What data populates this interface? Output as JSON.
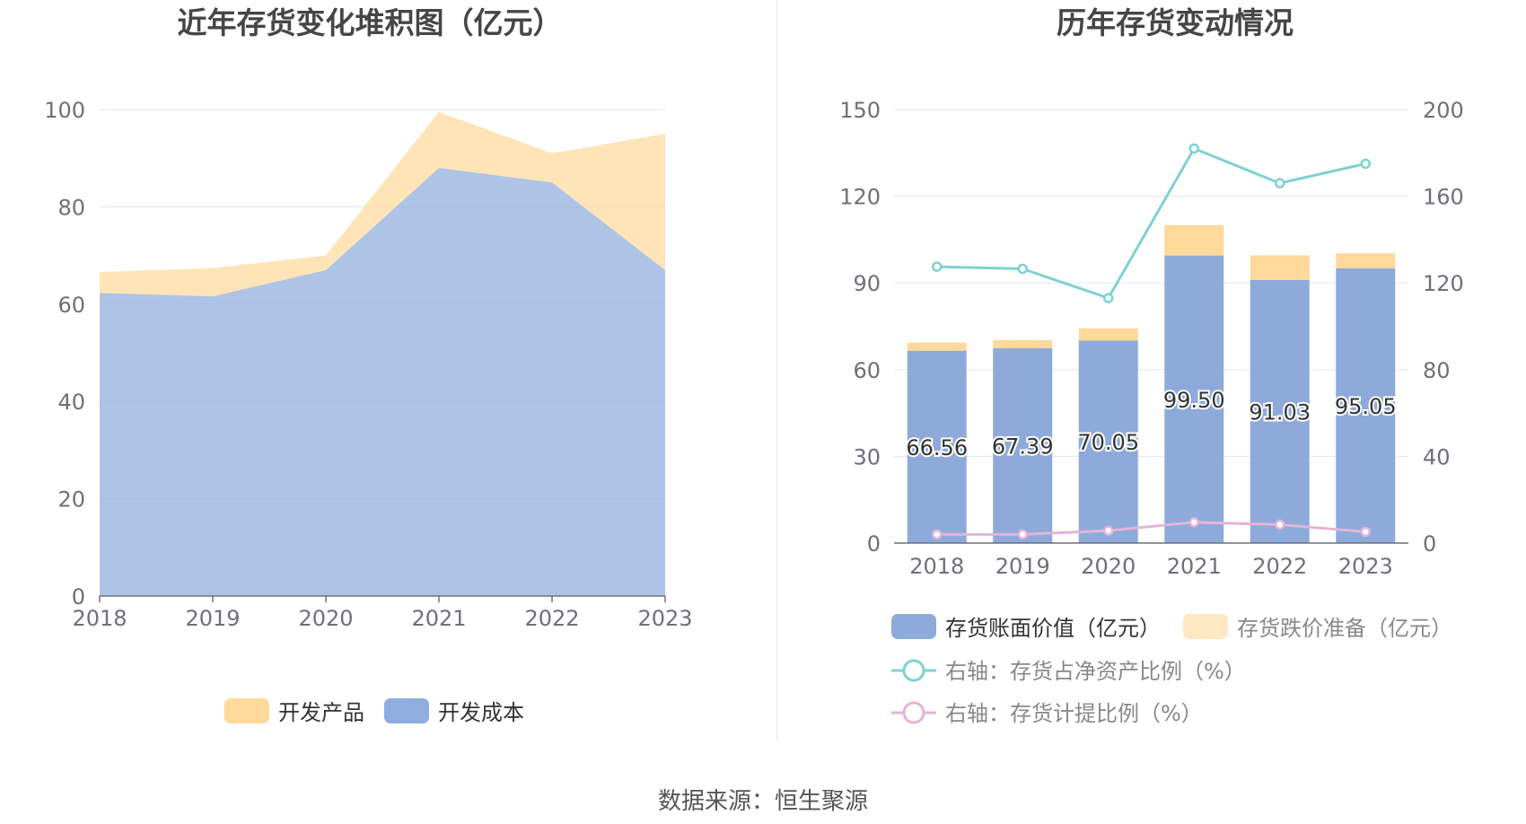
{
  "source": "数据来源：恒生聚源",
  "chart_data": [
    {
      "type": "area",
      "title": "近年存货变化堆积图（亿元）",
      "x": [
        "2018",
        "2019",
        "2020",
        "2021",
        "2022",
        "2023"
      ],
      "ylim": [
        0,
        100
      ],
      "yticks": [
        "0",
        "20",
        "40",
        "60",
        "80",
        "100"
      ],
      "stacked": true,
      "grid": true,
      "legend_position": "bottom",
      "series": [
        {
          "name": "开发成本",
          "values": [
            62.3,
            61.6,
            67.0,
            88.0,
            85.0,
            67.0
          ],
          "color": "#8fadde"
        },
        {
          "name": "开发产品",
          "values": [
            4.3,
            5.8,
            3.0,
            11.5,
            6.0,
            28.0
          ],
          "color": "#ffd999"
        }
      ],
      "legend": [
        "开发产品",
        "开发成本"
      ]
    },
    {
      "type": "bar",
      "title": "历年存货变动情况",
      "categories": [
        "2018",
        "2019",
        "2020",
        "2021",
        "2022",
        "2023"
      ],
      "ylim": [
        0,
        150
      ],
      "yticks": [
        "0",
        "30",
        "60",
        "90",
        "120",
        "150"
      ],
      "y2lim": [
        0,
        200
      ],
      "y2ticks": [
        "0",
        "40",
        "80",
        "120",
        "160",
        "200"
      ],
      "grid": true,
      "legend_position": "bottom",
      "series": [
        {
          "name": "存货账面价值（亿元）",
          "type": "bar",
          "stack": true,
          "axis": "left",
          "values": [
            66.56,
            67.39,
            70.05,
            99.5,
            91.03,
            95.05
          ],
          "labels": [
            "66.56",
            "67.39",
            "70.05",
            "99.50",
            "91.03",
            "95.05"
          ],
          "color": "#8eaada"
        },
        {
          "name": "存货跌价准备（亿元）",
          "type": "bar",
          "stack": true,
          "axis": "left",
          "values": [
            2.8,
            2.8,
            4.2,
            10.5,
            8.5,
            5.2
          ],
          "color": "#ffd999"
        },
        {
          "name": "右轴：存货占净资产比例（%）",
          "type": "line",
          "axis": "right",
          "values": [
            127.5,
            126.5,
            113.0,
            182.0,
            166.0,
            175.0
          ],
          "color": "#7fd1d3"
        },
        {
          "name": "右轴：存货计提比例（%）",
          "type": "line",
          "axis": "right",
          "values": [
            4.0,
            4.0,
            5.7,
            9.6,
            8.5,
            5.2
          ],
          "color": "#e3b4d9"
        }
      ]
    }
  ]
}
